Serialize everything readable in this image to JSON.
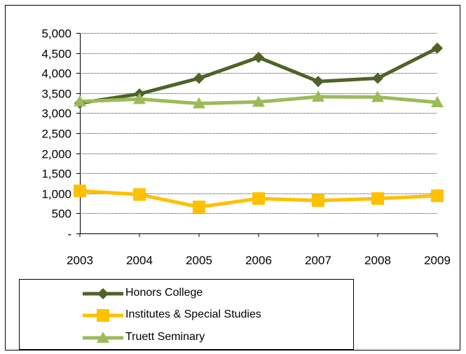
{
  "chart_data": {
    "type": "line",
    "title": "",
    "xlabel": "",
    "ylabel": "",
    "categories": [
      "2003",
      "2004",
      "2005",
      "2006",
      "2007",
      "2008",
      "2009"
    ],
    "ylim": [
      0,
      5000
    ],
    "yticks": [
      0,
      500,
      1000,
      1500,
      2000,
      2500,
      3000,
      3500,
      4000,
      4500,
      5000
    ],
    "ytick_labels": [
      "-",
      "500",
      "1,000",
      "1,500",
      "2,000",
      "2,500",
      "3,000",
      "3,500",
      "4,000",
      "4,500",
      "5,000"
    ],
    "grid": true,
    "legend_position": "bottom-left",
    "series": [
      {
        "name": "Honors College",
        "values": [
          3250,
          3480,
          3870,
          4390,
          3790,
          3870,
          4620
        ],
        "color": "#4F6228",
        "marker": "diamond"
      },
      {
        "name": "Institutes & Special Studies",
        "values": [
          1060,
          970,
          660,
          870,
          820,
          870,
          940
        ],
        "color": "#FFC000",
        "marker": "square"
      },
      {
        "name": "Truett Seminary",
        "values": [
          3290,
          3350,
          3240,
          3280,
          3410,
          3400,
          3270
        ],
        "color": "#9BBB59",
        "marker": "triangle"
      }
    ]
  }
}
